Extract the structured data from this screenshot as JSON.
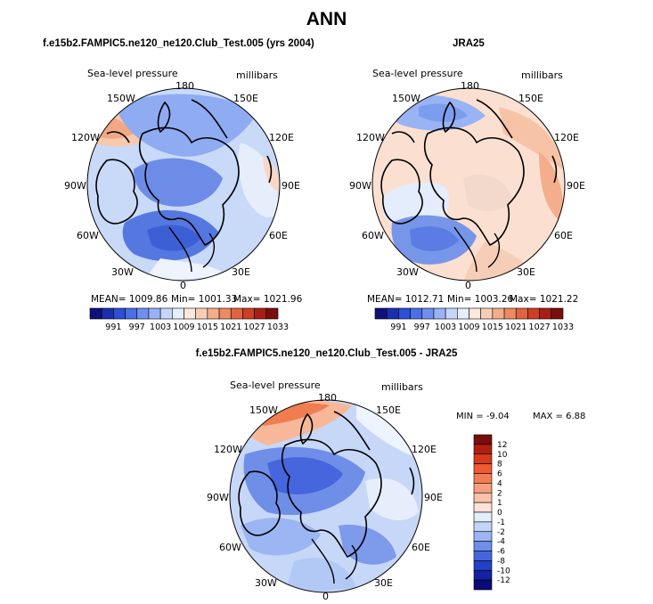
{
  "main_title": "ANN",
  "panel_left": {
    "title": "f.e15b2.FAMPIC5.ne120_ne120.Club_Test.005 (yrs 2004)",
    "variable": "Sea-level pressure",
    "units": "millibars",
    "longitudes": [
      "180",
      "150E",
      "120E",
      "90E",
      "60E",
      "30E",
      "0",
      "30W",
      "60W",
      "90W",
      "120W",
      "150W"
    ],
    "stats": {
      "mean": "MEAN= 1009.86",
      "min": "Min= 1001.33",
      "max": "Max= 1021.96"
    }
  },
  "panel_right": {
    "title": "JRA25",
    "variable": "Sea-level pressure",
    "units": "millibars",
    "longitudes": [
      "180",
      "150E",
      "120E",
      "90E",
      "60E",
      "30E",
      "0",
      "30W",
      "60W",
      "90W",
      "120W",
      "150W"
    ],
    "stats": {
      "mean": "MEAN= 1012.71",
      "min": "Min= 1003.26",
      "max": "Max= 1021.22"
    }
  },
  "abs_colorbar": {
    "labels": [
      "991",
      "997",
      "1003",
      "1009",
      "1015",
      "1021",
      "1027",
      "1033"
    ],
    "colors": [
      "#10107a",
      "#1a2fb0",
      "#2d4fd6",
      "#4a6fe6",
      "#6e8ff0",
      "#98b2f6",
      "#c4d6f9",
      "#e4eefc",
      "#fde8dc",
      "#f9cdb5",
      "#f4ad8c",
      "#ee8a63",
      "#e2633f",
      "#cd3e22",
      "#a81e14",
      "#7a0d0d"
    ]
  },
  "panel_diff": {
    "title": "f.e15b2.FAMPIC5.ne120_ne120.Club_Test.005 - JRA25",
    "variable": "Sea-level pressure",
    "units": "millibars",
    "longitudes": [
      "180",
      "150E",
      "120E",
      "90E",
      "60E",
      "30E",
      "0",
      "30W",
      "60W",
      "90W",
      "120W",
      "150W"
    ],
    "minmax": {
      "min_label": "MIN =",
      "min": "-9.04",
      "max_label": "MAX =",
      "max": "6.88"
    }
  },
  "diff_colorbar": {
    "labels": [
      "12",
      "10",
      "8",
      "6",
      "4",
      "2",
      "1",
      "0",
      "-1",
      "-2",
      "-4",
      "-6",
      "-8",
      "-10",
      "-12"
    ],
    "colors": [
      "#7a0d0d",
      "#b0200f",
      "#d83a1c",
      "#ef5a30",
      "#f27d55",
      "#f5a07f",
      "#f8c3aa",
      "#fce3d6",
      "#e3edfb",
      "#c2d4f7",
      "#9bb6f2",
      "#6f8ee8",
      "#4566dc",
      "#2440c6",
      "#1222a0",
      "#0a0a78"
    ]
  }
}
